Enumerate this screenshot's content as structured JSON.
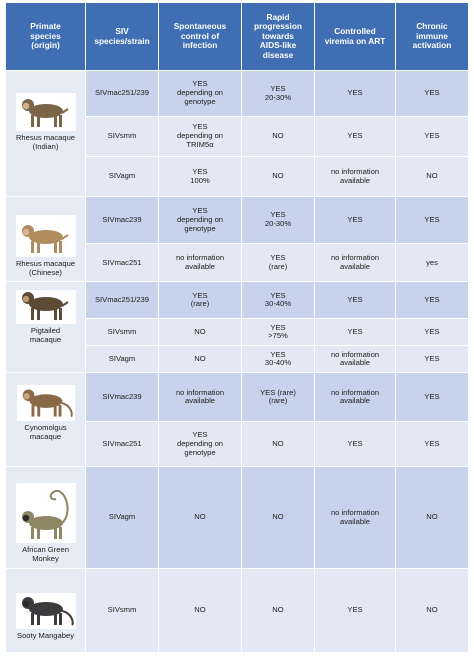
{
  "header": {
    "species": [
      "Primate",
      "species",
      "(origin)"
    ],
    "strain": [
      "SIV",
      "species/strain"
    ],
    "spontaneous": [
      "Spontaneous",
      "control of",
      "infection"
    ],
    "rapid": [
      "Rapid",
      "progression",
      "towards",
      "AIDS-like",
      "disease"
    ],
    "controlled": [
      "Controlled",
      "viremia on ART"
    ],
    "chronic": [
      "Chronic",
      "immune",
      "activation"
    ]
  },
  "species": [
    {
      "label": [
        "Rhesus macaque",
        "(Indian)"
      ],
      "icon": "rhesus-macaque-icon"
    },
    {
      "label": [
        "Rhesus macaque",
        "(Chinese)"
      ],
      "icon": "rhesus-macaque-icon"
    },
    {
      "label": [
        "Pigtailed",
        "macaque"
      ],
      "icon": "pigtailed-macaque-icon"
    },
    {
      "label": [
        "Cynomolgus",
        "macaque"
      ],
      "icon": "cynomolgus-macaque-icon"
    },
    {
      "label": [
        "African Green",
        "Monkey"
      ],
      "icon": "african-green-monkey-icon"
    },
    {
      "label": [
        "Sooty Mangabey"
      ],
      "icon": "sooty-mangabey-icon"
    }
  ],
  "rows": [
    {
      "strain": [
        "SIVmac251/239"
      ],
      "spont": [
        "YES",
        "depending on",
        "genotype"
      ],
      "rapid": [
        "YES",
        "20-30%"
      ],
      "art": [
        "YES"
      ],
      "chronic": [
        "YES"
      ]
    },
    {
      "strain": [
        "SIVsmm"
      ],
      "spont": [
        "YES",
        "depending on",
        "TRIM5α"
      ],
      "rapid": [
        "NO"
      ],
      "art": [
        "YES"
      ],
      "chronic": [
        "YES"
      ]
    },
    {
      "strain": [
        "SIVagm"
      ],
      "spont": [
        "YES",
        "100%"
      ],
      "rapid": [
        "NO"
      ],
      "art": [
        "no information",
        "available"
      ],
      "chronic": [
        "NO"
      ]
    },
    {
      "strain": [
        "SIVmac239"
      ],
      "spont": [
        "YES",
        "depending on",
        "genotype"
      ],
      "rapid": [
        "YES",
        "20-30%"
      ],
      "art": [
        "YES"
      ],
      "chronic": [
        "YES"
      ]
    },
    {
      "strain": [
        "SIVmac251"
      ],
      "spont": [
        "no information",
        "available"
      ],
      "rapid": [
        "YES",
        "(rare)"
      ],
      "art": [
        "no information",
        "available"
      ],
      "chronic": [
        "yes"
      ]
    },
    {
      "strain": [
        "SIVmac251/239"
      ],
      "spont": [
        "YES",
        "(rare)"
      ],
      "rapid": [
        "YES",
        "30-40%"
      ],
      "art": [
        "YES"
      ],
      "chronic": [
        "YES"
      ]
    },
    {
      "strain": [
        "SIVsmm"
      ],
      "spont": [
        "NO"
      ],
      "rapid": [
        "YES",
        ">75%"
      ],
      "art": [
        "YES"
      ],
      "chronic": [
        "YES"
      ]
    },
    {
      "strain": [
        "SIVagm"
      ],
      "spont": [
        "NO"
      ],
      "rapid": [
        "YES",
        "30-40%"
      ],
      "art": [
        "no information",
        "available"
      ],
      "chronic": [
        "YES"
      ]
    },
    {
      "strain": [
        "SIVmac239"
      ],
      "spont": [
        "no information",
        "available"
      ],
      "rapid": [
        "YES (rare)",
        "(rare)"
      ],
      "art": [
        "no information",
        "available"
      ],
      "chronic": [
        "YES"
      ]
    },
    {
      "strain": [
        "SIVmac251"
      ],
      "spont": [
        "YES",
        "depending on",
        "genotype"
      ],
      "rapid": [
        "NO"
      ],
      "art": [
        "YES"
      ],
      "chronic": [
        "YES"
      ]
    },
    {
      "strain": [
        "SIVagm"
      ],
      "spont": [
        "NO"
      ],
      "rapid": [
        "NO"
      ],
      "art": [
        "no information",
        "available"
      ],
      "chronic": [
        "NO"
      ]
    },
    {
      "strain": [
        "SIVsmm"
      ],
      "spont": [
        "NO"
      ],
      "rapid": [
        "NO"
      ],
      "art": [
        "YES"
      ],
      "chronic": [
        "NO"
      ]
    }
  ],
  "colors": {
    "header": "#3f6fb2",
    "row_dark": "#c6d3ea",
    "row_light": "#e2e8f4"
  }
}
